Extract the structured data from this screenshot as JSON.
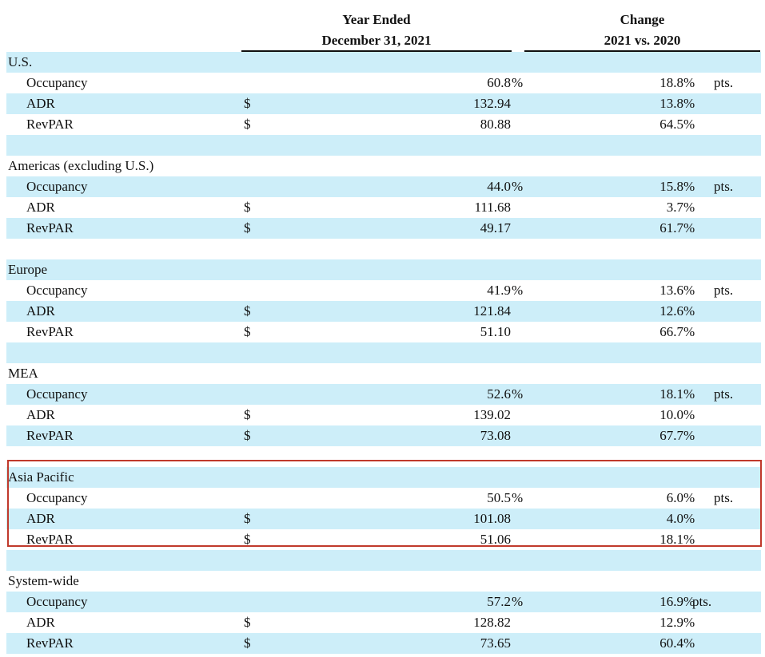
{
  "header": {
    "year_line1": "Year Ended",
    "year_line2": "December 31, 2021",
    "change_line1": "Change",
    "change_line2": "2021 vs. 2020"
  },
  "symbols": {
    "dollar": "$",
    "percent": "%",
    "points": "pts."
  },
  "colors": {
    "row_shade": "#cdeef9",
    "highlight_border": "#c0392b"
  },
  "highlighted_section": "Asia Pacific",
  "sections": [
    {
      "name": "U.S.",
      "rows": [
        {
          "label": "Occupancy",
          "dollar": "",
          "year": "60.8",
          "year_pct": "%",
          "change": "18.8",
          "change_pct": "%",
          "pts": "pts."
        },
        {
          "label": "ADR",
          "dollar": "$",
          "year": "132.94",
          "year_pct": "",
          "change": "13.8",
          "change_pct": "%",
          "pts": ""
        },
        {
          "label": "RevPAR",
          "dollar": "$",
          "year": "80.88",
          "year_pct": "",
          "change": "64.5",
          "change_pct": "%",
          "pts": ""
        }
      ]
    },
    {
      "name": "Americas (excluding U.S.)",
      "rows": [
        {
          "label": "Occupancy",
          "dollar": "",
          "year": "44.0",
          "year_pct": "%",
          "change": "15.8",
          "change_pct": "%",
          "pts": "pts."
        },
        {
          "label": "ADR",
          "dollar": "$",
          "year": "111.68",
          "year_pct": "",
          "change": "3.7",
          "change_pct": "%",
          "pts": ""
        },
        {
          "label": "RevPAR",
          "dollar": "$",
          "year": "49.17",
          "year_pct": "",
          "change": "61.7",
          "change_pct": "%",
          "pts": ""
        }
      ]
    },
    {
      "name": "Europe",
      "rows": [
        {
          "label": "Occupancy",
          "dollar": "",
          "year": "41.9",
          "year_pct": "%",
          "change": "13.6",
          "change_pct": "%",
          "pts": "pts."
        },
        {
          "label": "ADR",
          "dollar": "$",
          "year": "121.84",
          "year_pct": "",
          "change": "12.6",
          "change_pct": "%",
          "pts": ""
        },
        {
          "label": "RevPAR",
          "dollar": "$",
          "year": "51.10",
          "year_pct": "",
          "change": "66.7",
          "change_pct": "%",
          "pts": ""
        }
      ]
    },
    {
      "name": "MEA",
      "rows": [
        {
          "label": "Occupancy",
          "dollar": "",
          "year": "52.6",
          "year_pct": "%",
          "change": "18.1",
          "change_pct": "%",
          "pts": "pts."
        },
        {
          "label": "ADR",
          "dollar": "$",
          "year": "139.02",
          "year_pct": "",
          "change": "10.0",
          "change_pct": "%",
          "pts": ""
        },
        {
          "label": "RevPAR",
          "dollar": "$",
          "year": "73.08",
          "year_pct": "",
          "change": "67.7",
          "change_pct": "%",
          "pts": ""
        }
      ]
    },
    {
      "name": "Asia Pacific",
      "rows": [
        {
          "label": "Occupancy",
          "dollar": "",
          "year": "50.5",
          "year_pct": "%",
          "change": "6.0",
          "change_pct": "%",
          "pts": "pts."
        },
        {
          "label": "ADR",
          "dollar": "$",
          "year": "101.08",
          "year_pct": "",
          "change": "4.0",
          "change_pct": "%",
          "pts": ""
        },
        {
          "label": "RevPAR",
          "dollar": "$",
          "year": "51.06",
          "year_pct": "",
          "change": "18.1",
          "change_pct": "%",
          "pts": ""
        }
      ]
    },
    {
      "name": "System-wide",
      "rows": [
        {
          "label": "Occupancy",
          "dollar": "",
          "year": "57.2",
          "year_pct": "%",
          "change": "16.9",
          "change_pct": "%",
          "pts": "pts."
        },
        {
          "label": "ADR",
          "dollar": "$",
          "year": "128.82",
          "year_pct": "",
          "change": "12.9",
          "change_pct": "%",
          "pts": ""
        },
        {
          "label": "RevPAR",
          "dollar": "$",
          "year": "73.65",
          "year_pct": "",
          "change": "60.4",
          "change_pct": "%",
          "pts": ""
        }
      ]
    }
  ]
}
